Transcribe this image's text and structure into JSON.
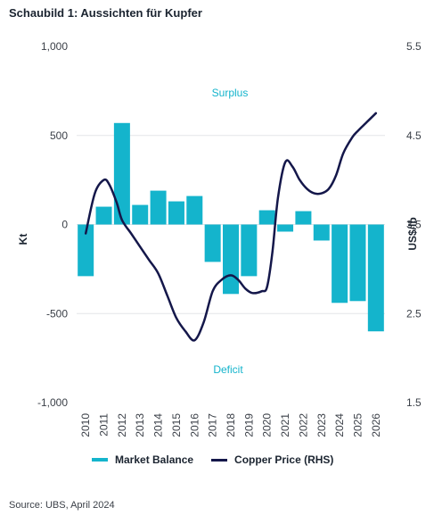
{
  "title": "Schaubild 1: Aussichten für Kupfer",
  "source": "Source: UBS, April 2024",
  "annotations": {
    "surplus": "Surplus",
    "deficit": "Deficit"
  },
  "colors": {
    "bars": "#14b4cc",
    "line": "#14174a",
    "grid": "#e3e5e8"
  },
  "chart_data": {
    "type": "bar",
    "categories": [
      "2010",
      "2011",
      "2012",
      "2013",
      "2014",
      "2015",
      "2016",
      "2017",
      "2018",
      "2019",
      "2020",
      "2021",
      "2022",
      "2023",
      "2024",
      "2025",
      "2026"
    ],
    "ylabel": "Kt",
    "ylabel_right": "US$/lb",
    "ylim": [
      -1000,
      1000
    ],
    "ylim_right": [
      1.5,
      5.5
    ],
    "yticks": [
      1000,
      500,
      0,
      -500,
      -1000
    ],
    "yticks_labels": [
      "1,000",
      "500",
      "0",
      "-500",
      "-1,000"
    ],
    "yticks_right": [
      5.5,
      4.5,
      3.5,
      2.5,
      1.5
    ],
    "yticks_right_labels": [
      "5.5",
      "4.5",
      "3.5",
      "2.5",
      "1.5"
    ],
    "grid": true,
    "legend_position": "bottom",
    "series": [
      {
        "name": "Market Balance",
        "kind": "bar",
        "axis": "left",
        "values": [
          -290,
          100,
          570,
          110,
          190,
          130,
          160,
          -210,
          -390,
          -290,
          80,
          -40,
          75,
          -90,
          -440,
          -430,
          -600
        ]
      },
      {
        "name": "Copper Price (RHS)",
        "kind": "line",
        "axis": "right",
        "x": [
          2010,
          2010.5,
          2011,
          2011.3,
          2011.7,
          2012,
          2012.5,
          2013,
          2013.5,
          2014,
          2014.5,
          2015,
          2015.5,
          2016,
          2016.5,
          2017,
          2017.5,
          2018,
          2018.4,
          2018.8,
          2019.2,
          2019.7,
          2020,
          2020.3,
          2020.6,
          2021,
          2021.4,
          2021.8,
          2022.2,
          2022.6,
          2023,
          2023.4,
          2023.8,
          2024.2,
          2024.7,
          2025,
          2025.5,
          2026
        ],
        "values": [
          3.4,
          3.85,
          4.0,
          3.95,
          3.75,
          3.55,
          3.4,
          3.25,
          3.1,
          2.95,
          2.7,
          2.45,
          2.3,
          2.2,
          2.4,
          2.75,
          2.88,
          2.93,
          2.88,
          2.78,
          2.73,
          2.75,
          2.8,
          3.2,
          3.8,
          4.2,
          4.15,
          4.0,
          3.9,
          3.85,
          3.85,
          3.9,
          4.05,
          4.3,
          4.48,
          4.55,
          4.65,
          4.75
        ]
      }
    ]
  }
}
